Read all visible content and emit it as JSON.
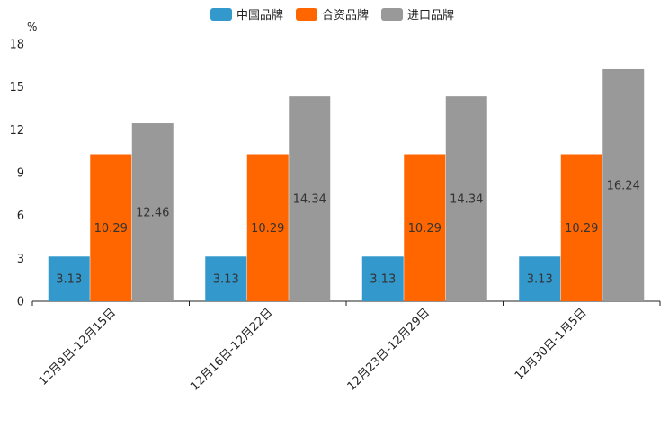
{
  "chart_data": {
    "type": "bar",
    "title": "",
    "xlabel": "",
    "ylabel": "%",
    "ylim": [
      0,
      18
    ],
    "yticks": [
      0,
      3,
      6,
      9,
      12,
      15,
      18
    ],
    "grid": false,
    "legend_position": "top-center",
    "categories": [
      "12月9日-12月15日",
      "12月16日-12月22日",
      "12月23日-12月29日",
      "12月30日-1月5日"
    ],
    "series": [
      {
        "name": "中国品牌",
        "color": "#3399cc",
        "values": [
          3.13,
          3.13,
          3.13,
          3.13
        ]
      },
      {
        "name": "合资品牌",
        "color": "#ff6600",
        "values": [
          10.29,
          10.29,
          10.29,
          10.29
        ]
      },
      {
        "name": "进口品牌",
        "color": "#999999",
        "values": [
          12.46,
          14.34,
          14.34,
          16.24
        ]
      }
    ]
  }
}
